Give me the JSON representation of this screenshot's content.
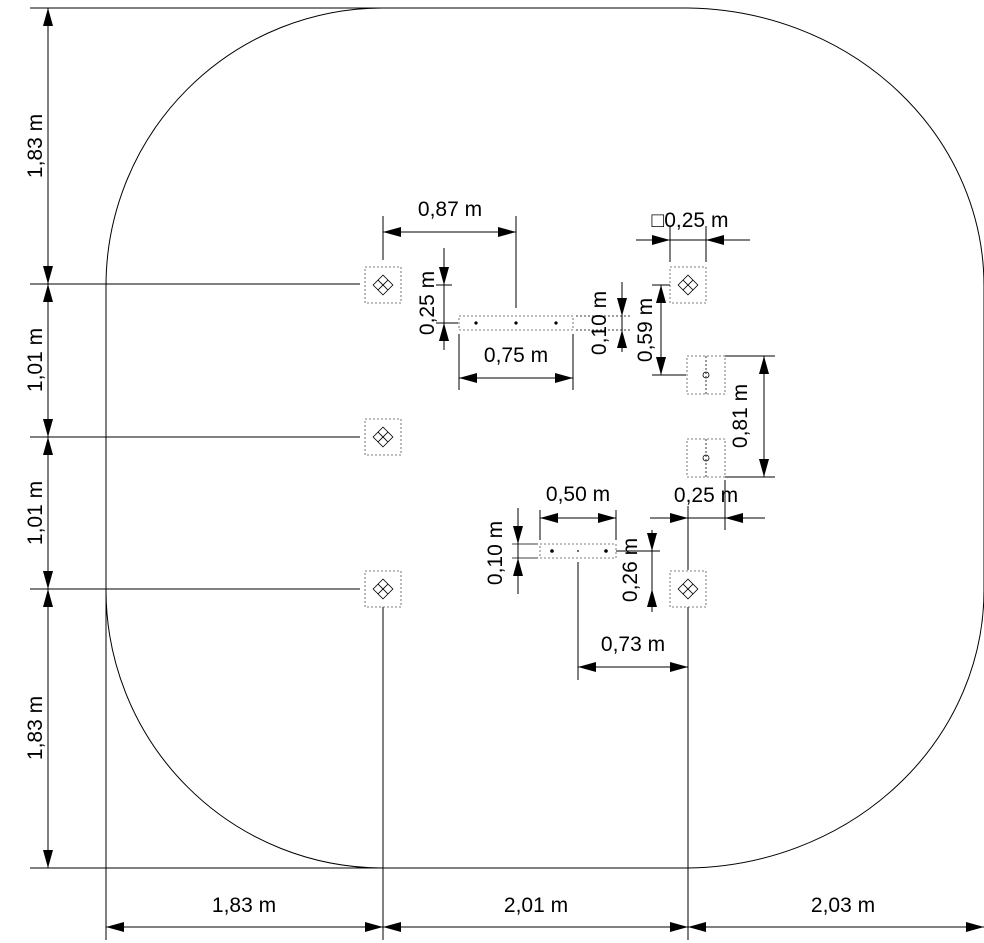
{
  "dimensions": {
    "left_top": "1,83 m",
    "left_mid_a": "1,01 m",
    "left_mid_b": "1,01 m",
    "left_bottom": "1,83 m",
    "bottom_left": "1,83 m",
    "bottom_mid": "2,01 m",
    "bottom_right": "2,03 m",
    "upper_beam_offset": "0,87 m",
    "upper_beam_height": "0,25 m",
    "upper_beam_length": "0,75 m",
    "upper_beam_thickness": "0,10 m",
    "post_size": "0,25 m",
    "post_spacing_a": "0,59 m",
    "post_spacing_b": "0,81 m",
    "lower_beam_length": "0,50 m",
    "lower_beam_thickness": "0,10 m",
    "lower_offset_a": "0,25 m",
    "lower_offset_b": "0,26 m",
    "lower_offset_c": "0,73 m"
  },
  "post_size_symbol": "□"
}
